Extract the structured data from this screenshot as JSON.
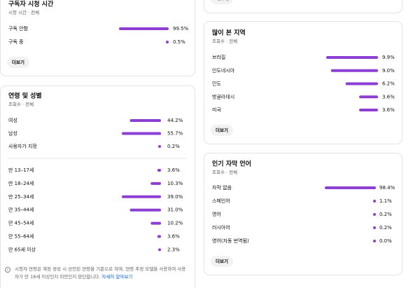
{
  "cards": [
    {
      "title": "구독자 시청 시간",
      "subtitle": "시청 시간 · 전체",
      "groups": [
        {
          "labels": [
            "구독 안함",
            "구독 중"
          ],
          "values": [
            99.5,
            0.5
          ],
          "value_labels": [
            "99.5%",
            "0.5%"
          ]
        }
      ],
      "button": "더보기"
    },
    {
      "title": "연령 및 성별",
      "subtitle": "조회수 · 전체",
      "groups": [
        {
          "labels": [
            "여성",
            "남성",
            "사용자가 지정"
          ],
          "values": [
            44.2,
            55.7,
            0.2
          ],
          "value_labels": [
            "44.2%",
            "55.7%",
            "0.2%"
          ]
        },
        {
          "labels": [
            "만 13–17세",
            "만 18–24세",
            "만 25–34세",
            "만 35–44세",
            "만 45–54세",
            "만 55–64세",
            "만 65세 이상"
          ],
          "values": [
            3.6,
            10.3,
            39.0,
            31.0,
            10.2,
            3.6,
            2.3
          ],
          "value_labels": [
            "3.6%",
            "10.3%",
            "39.0%",
            "31.0%",
            "10.2%",
            "3.6%",
            "2.3%"
          ]
        }
      ],
      "note": "시청자 연령은 계정 생성 시 선언된 연령을 기준으로 하며, 연령 추정 모델을 사용하여 사용자가 만 18세 이상인지 미만인지 판단합니다.",
      "note_link": "자세히 알아보기"
    },
    {
      "button": "더보기"
    },
    {
      "title": "많이 본 지역",
      "subtitle": "조회수 · 전체",
      "groups": [
        {
          "labels": [
            "브라질",
            "인도네시아",
            "인도",
            "방글라데시",
            "미국"
          ],
          "values": [
            9.9,
            9.0,
            6.2,
            3.6,
            3.6
          ],
          "value_labels": [
            "9.9%",
            "9.0%",
            "6.2%",
            "3.6%",
            "3.6%"
          ]
        }
      ],
      "button": "더보기"
    },
    {
      "title": "인기 자막 언어",
      "subtitle": "조회수 · 전체",
      "groups": [
        {
          "labels": [
            "자막 없음",
            "스페인어",
            "영어",
            "러시아어",
            "영어(자동 번역됨)"
          ],
          "values": [
            98.4,
            1.1,
            0.2,
            0.2,
            0.0
          ],
          "value_labels": [
            "98.4%",
            "1.1%",
            "0.2%",
            "0.2%",
            "0.0%"
          ]
        }
      ],
      "button": "더보기"
    }
  ]
}
